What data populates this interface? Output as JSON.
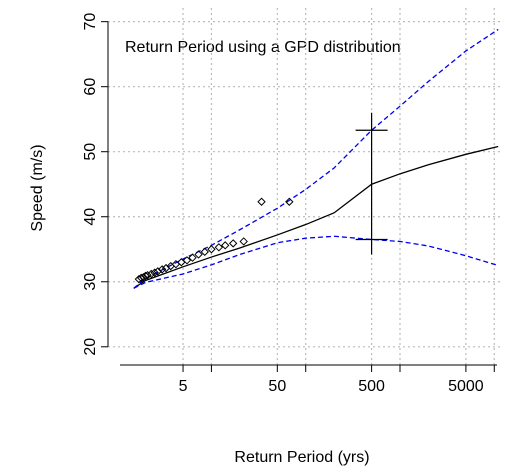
{
  "chart_data": {
    "type": "return-level",
    "title": "Return Period using a GPD distribution",
    "x_label": "Return Period (yrs)",
    "y_label": "Speed (m/s)",
    "xlog": true,
    "grid": true,
    "xlim": [
      0.8,
      11500
    ],
    "ylim": [
      17.2,
      72.1
    ],
    "xticks": [
      5,
      50,
      500,
      5000
    ],
    "xminor_ticks": [
      10,
      100,
      1000,
      10000
    ],
    "yticks": [
      20,
      30,
      40,
      50,
      60,
      70
    ],
    "series": [
      {
        "color": "#000000",
        "style": "solid",
        "x": [
          1.5,
          2,
          5,
          10,
          20,
          50,
          100,
          200,
          500,
          1000,
          2000,
          5000,
          11000
        ],
        "values": [
          29.0,
          30.2,
          32.3,
          33.8,
          35.2,
          37.2,
          38.8,
          40.6,
          45.0,
          46.6,
          48.0,
          49.6,
          50.8
        ]
      },
      {
        "color": "#0000ee",
        "style": "dashed",
        "x": [
          1.5,
          2,
          5,
          10,
          20,
          50,
          100,
          200,
          500,
          1000,
          2000,
          5000,
          11000
        ],
        "values": [
          29.0,
          30.5,
          33.5,
          35.6,
          38.0,
          41.3,
          44.2,
          47.5,
          53.3,
          57.0,
          60.8,
          65.5,
          68.8
        ]
      },
      {
        "color": "#0000ee",
        "style": "dashed",
        "x": [
          1.5,
          2,
          5,
          10,
          20,
          50,
          100,
          200,
          500,
          1000,
          2000,
          5000,
          11000
        ],
        "values": [
          29.0,
          29.9,
          31.2,
          32.6,
          34.2,
          36.0,
          36.7,
          37.0,
          36.5,
          36.2,
          35.5,
          34.0,
          32.5
        ]
      }
    ],
    "points": {
      "color": "#000000",
      "x": [
        1.7,
        1.8,
        1.9,
        2,
        2.1,
        2.3,
        2.5,
        2.7,
        3,
        3.3,
        3.7,
        4.2,
        4.8,
        5.5,
        6.3,
        7.3,
        8.5,
        10,
        12,
        14,
        17,
        22,
        34,
        67
      ],
      "values": [
        30.4,
        30.6,
        30.7,
        30.9,
        31.0,
        31.2,
        31.4,
        31.6,
        31.9,
        32.1,
        32.4,
        32.7,
        33.0,
        33.3,
        33.7,
        34.2,
        34.6,
        35.0,
        35.3,
        35.6,
        35.9,
        36.2,
        42.3,
        42.3
      ]
    },
    "error_bar": {
      "x": 500,
      "low": 34.2,
      "high": 56.0,
      "caps": [
        53.3,
        36.5
      ]
    }
  }
}
